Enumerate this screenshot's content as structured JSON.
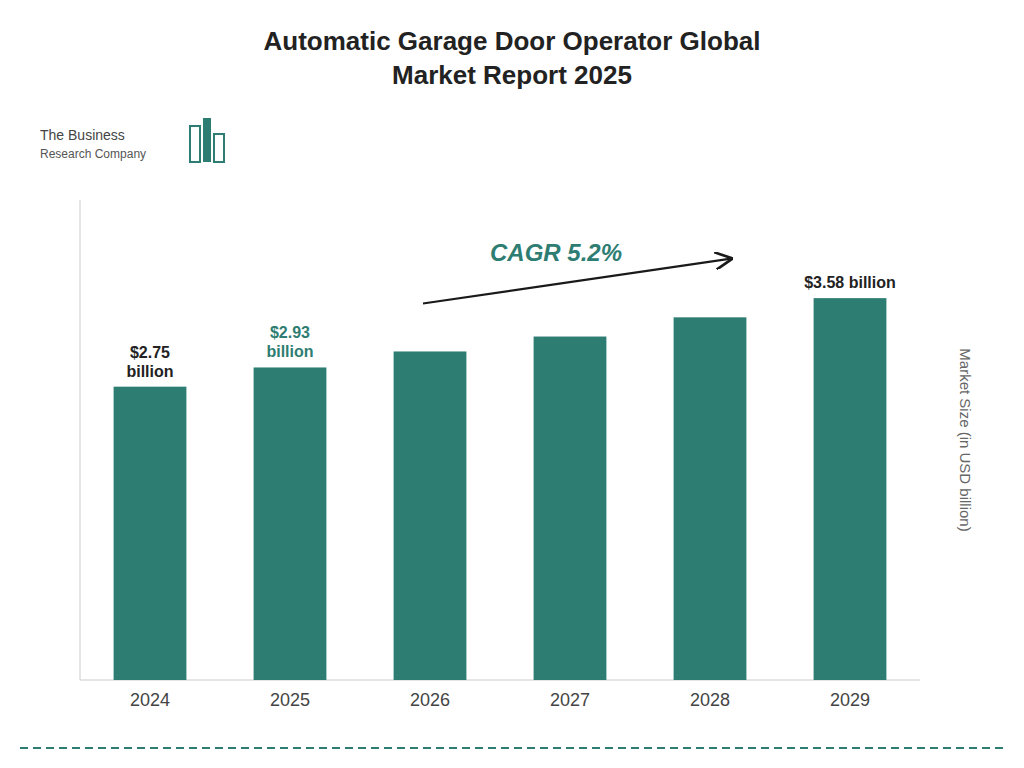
{
  "chart_data": {
    "type": "bar",
    "title": "Automatic Garage Door Operator Global\nMarket Report 2025",
    "y_label": "Market Size (in USD billion)",
    "categories": [
      "2024",
      "2025",
      "2026",
      "2027",
      "2028",
      "2029"
    ],
    "values": [
      2.75,
      2.93,
      3.08,
      3.22,
      3.4,
      3.58
    ],
    "value_labels": [
      "$2.75\nbillion",
      "$2.93\nbillion",
      null,
      null,
      null,
      "$3.58 billion"
    ],
    "color": "#2e7d72",
    "ylim": [
      0,
      4.5
    ],
    "tick_labels": "x",
    "annotations": [
      {
        "text": "CAGR 5.2%"
      },
      {
        "text": "The Business"
      },
      {
        "text": "Research Company"
      }
    ]
  }
}
